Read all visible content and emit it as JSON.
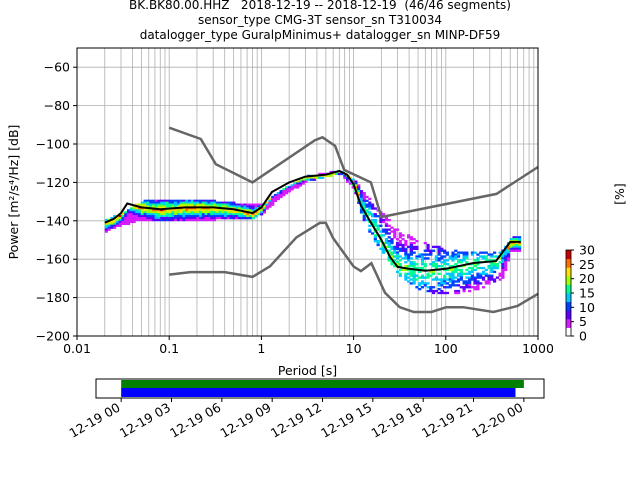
{
  "title": {
    "line1": "BK.BK80.00.HHZ   2018-12-19 -- 2018-12-19  (46/46 segments)",
    "line2": "sensor_type CMG-3T sensor_sn T310034",
    "line3": "datalogger_type GuralpMinimus+ datalogger_sn MINP-DF59"
  },
  "chart_data": [
    {
      "type": "heatmap",
      "title": "BK.BK80.00.HHZ   2018-12-19 -- 2018-12-19  (46/46 segments)",
      "xlabel": "Period [s]",
      "ylabel": "Power [m²/s⁴/Hz] [dB]",
      "xscale": "log",
      "xlim": [
        0.01,
        1000
      ],
      "ylim": [
        -200,
        -50
      ],
      "grid": true,
      "x_ticks": [
        "0.01",
        "0.1",
        "1",
        "10",
        "100",
        "1000"
      ],
      "y_ticks": [
        "−60",
        "−80",
        "−100",
        "−120",
        "−140",
        "−160",
        "−180",
        "−200"
      ],
      "colorbar": {
        "label": "[%]",
        "range": [
          0,
          30
        ],
        "ticks": [
          "0",
          "5",
          "10",
          "15",
          "20",
          "25",
          "30"
        ],
        "colors": [
          "#ffffff",
          "#d41cff",
          "#5a00ff",
          "#0040ff",
          "#00c8ff",
          "#00ff90",
          "#a0ff00",
          "#ffe000",
          "#ff7000",
          "#c80000"
        ]
      },
      "noise_model_high": {
        "name": "NHNM",
        "color": "#666666",
        "x": [
          0.1,
          0.22,
          0.32,
          0.8,
          3.8,
          4.6,
          6.3,
          7.9,
          15.4,
          20,
          354.8,
          1000
        ],
        "y": [
          -91.5,
          -97.4,
          -110.5,
          -120,
          -98,
          -96.5,
          -101,
          -113.5,
          -120,
          -138,
          -126,
          -112
        ]
      },
      "noise_model_low": {
        "name": "NLNM",
        "color": "#666666",
        "x": [
          0.1,
          0.17,
          0.4,
          0.8,
          1.24,
          2.4,
          4.3,
          5.0,
          6.0,
          10,
          12,
          15.6,
          21.9,
          31.6,
          45,
          70,
          101,
          154,
          328,
          600,
          1000
        ],
        "y": [
          -168,
          -166.7,
          -166.7,
          -169.2,
          -163.7,
          -148.6,
          -141.1,
          -141.1,
          -149,
          -163.8,
          -166.2,
          -162.1,
          -177.5,
          -185,
          -187.5,
          -187.5,
          -185,
          -185,
          -187.5,
          -184.4,
          -178
        ]
      },
      "mean_curve": {
        "name": "mean",
        "color": "#000000",
        "x": [
          0.02,
          0.025,
          0.03,
          0.035,
          0.05,
          0.08,
          0.15,
          0.3,
          0.5,
          0.8,
          1.0,
          1.3,
          2.0,
          3.0,
          5.0,
          7.0,
          8.5,
          10,
          12,
          15,
          20,
          25,
          30,
          40,
          60,
          100,
          200,
          350,
          500,
          650
        ],
        "y": [
          -141,
          -139,
          -136,
          -131,
          -133,
          -134,
          -133,
          -133,
          -134,
          -136,
          -133,
          -125,
          -120,
          -117,
          -116,
          -114,
          -116,
          -121,
          -132,
          -140,
          -150,
          -159,
          -164,
          -165,
          -166,
          -165,
          -162,
          -161,
          -151,
          -151
        ]
      },
      "density_spread": {
        "x": [
          0.02,
          0.03,
          0.05,
          0.1,
          0.2,
          0.3,
          0.5,
          0.8,
          1.0,
          1.5,
          3.0,
          7.0,
          10,
          12,
          15,
          20,
          30,
          50,
          100,
          200,
          400,
          500,
          650
        ],
        "y_top": [
          -139,
          -135,
          -129,
          -129,
          -128,
          -129,
          -130,
          -131,
          -131,
          -124,
          -116,
          -113,
          -118,
          -124,
          -128,
          -135,
          -144,
          -150,
          -154,
          -156,
          -155,
          -148,
          -148
        ],
        "y_bottom": [
          -145,
          -142,
          -139,
          -140,
          -139,
          -139,
          -138,
          -138,
          -136,
          -128,
          -119,
          -115,
          -124,
          -137,
          -148,
          -156,
          -168,
          -176,
          -178,
          -176,
          -170,
          -155,
          -155
        ]
      }
    },
    {
      "type": "bar",
      "xlabel": "",
      "x_ticks": [
        "12-19 00",
        "12-19 03",
        "12-19 06",
        "12-19 09",
        "12-19 12",
        "12-19 15",
        "12-19 18",
        "12-19 21",
        "12-20 00"
      ],
      "xlim_hours": [
        -1.5,
        25.2
      ],
      "series": [
        {
          "color": "#008000",
          "start_hour": 0.0,
          "end_hour": 24.0
        },
        {
          "color": "#0000ff",
          "start_hour": 0.0,
          "end_hour": 23.5
        }
      ]
    }
  ]
}
